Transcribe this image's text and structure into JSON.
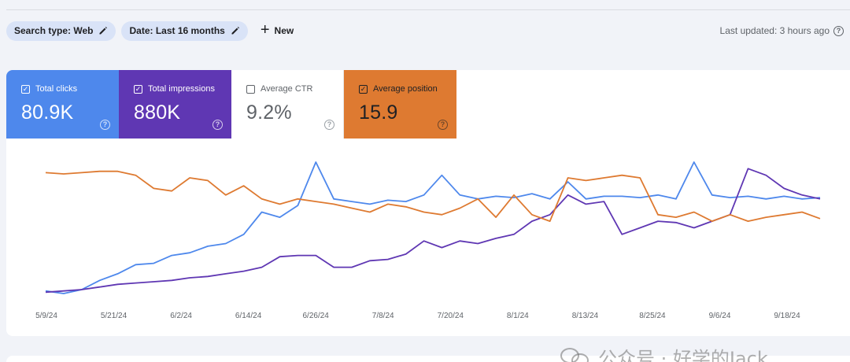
{
  "filters": {
    "search_type": "Search type: Web",
    "date": "Date: Last 16 months",
    "new_label": "New"
  },
  "last_updated": "Last updated: 3 hours ago",
  "metrics": [
    {
      "label": "Total clicks",
      "value": "80.9K",
      "checked": true,
      "color": "#4e88ec"
    },
    {
      "label": "Total impressions",
      "value": "880K",
      "checked": true,
      "color": "#5f37b3"
    },
    {
      "label": "Average CTR",
      "value": "9.2%",
      "checked": false,
      "color": "#ffffff"
    },
    {
      "label": "Average position",
      "value": "15.9",
      "checked": true,
      "color": "#de7a31"
    }
  ],
  "watermark": "公众号 · 好学的Jack",
  "chart_data": {
    "type": "line",
    "x_labels": [
      "5/9/24",
      "5/21/24",
      "6/2/24",
      "6/14/24",
      "6/26/24",
      "7/8/24",
      "7/20/24",
      "8/1/24",
      "8/13/24",
      "8/25/24",
      "9/6/24",
      "9/18/24"
    ],
    "series": [
      {
        "name": "Total clicks",
        "color": "#4e88ec",
        "values": [
          0.02,
          0.0,
          0.03,
          0.1,
          0.15,
          0.22,
          0.23,
          0.29,
          0.31,
          0.36,
          0.38,
          0.45,
          0.62,
          0.58,
          0.67,
          1.0,
          0.72,
          0.7,
          0.68,
          0.71,
          0.7,
          0.75,
          0.9,
          0.75,
          0.72,
          0.74,
          0.73,
          0.76,
          0.72,
          0.85,
          0.72,
          0.74,
          0.74,
          0.73,
          0.75,
          0.72,
          1.0,
          0.75,
          0.73,
          0.74,
          0.72,
          0.74,
          0.72,
          0.73
        ]
      },
      {
        "name": "Total impressions",
        "color": "#5f37b3",
        "values": [
          0.01,
          0.02,
          0.03,
          0.05,
          0.07,
          0.08,
          0.09,
          0.1,
          0.12,
          0.13,
          0.15,
          0.17,
          0.2,
          0.28,
          0.29,
          0.29,
          0.2,
          0.2,
          0.25,
          0.26,
          0.3,
          0.4,
          0.35,
          0.4,
          0.38,
          0.42,
          0.45,
          0.55,
          0.6,
          0.75,
          0.68,
          0.7,
          0.45,
          0.5,
          0.55,
          0.54,
          0.5,
          0.55,
          0.6,
          0.95,
          0.9,
          0.8,
          0.75,
          0.72
        ]
      },
      {
        "name": "Average position",
        "color": "#de7a31",
        "values": [
          0.92,
          0.91,
          0.92,
          0.93,
          0.93,
          0.9,
          0.8,
          0.78,
          0.88,
          0.86,
          0.75,
          0.82,
          0.72,
          0.68,
          0.72,
          0.7,
          0.68,
          0.65,
          0.62,
          0.68,
          0.66,
          0.62,
          0.6,
          0.65,
          0.72,
          0.58,
          0.75,
          0.6,
          0.55,
          0.88,
          0.86,
          0.88,
          0.9,
          0.88,
          0.6,
          0.58,
          0.62,
          0.55,
          0.6,
          0.55,
          0.58,
          0.6,
          0.62,
          0.57
        ]
      }
    ]
  }
}
